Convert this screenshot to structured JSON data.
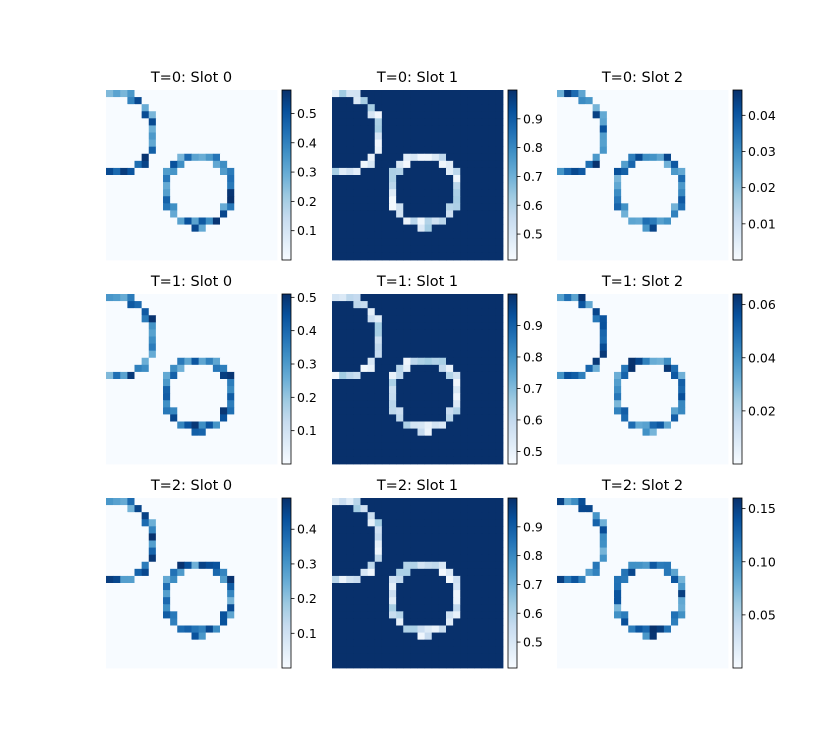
{
  "chart_data": {
    "type": "heatmap",
    "colormap": "Blues",
    "grid": "3x3",
    "panels": [
      {
        "title": "T=0: Slot 0",
        "mode": "ring",
        "dark_max": 0.58,
        "vmin": 0.0,
        "vmax": 0.58,
        "ticks": [
          0.1,
          0.2,
          0.3,
          0.4,
          0.5
        ]
      },
      {
        "title": "T=0: Slot 1",
        "mode": "inverse",
        "dark_max": 1.0,
        "vmin": 0.41,
        "vmax": 1.0,
        "ticks": [
          0.5,
          0.6,
          0.7,
          0.8,
          0.9
        ]
      },
      {
        "title": "T=0: Slot 2",
        "mode": "ring",
        "dark_max": 0.047,
        "vmin": 0.0,
        "vmax": 0.047,
        "ticks": [
          0.01,
          0.02,
          0.03,
          0.04
        ]
      },
      {
        "title": "T=1: Slot 0",
        "mode": "ring",
        "dark_max": 0.51,
        "vmin": 0.0,
        "vmax": 0.51,
        "ticks": [
          0.1,
          0.2,
          0.3,
          0.4,
          0.5
        ]
      },
      {
        "title": "T=1: Slot 1",
        "mode": "inverse",
        "dark_max": 1.0,
        "vmin": 0.46,
        "vmax": 1.0,
        "ticks": [
          0.5,
          0.6,
          0.7,
          0.8,
          0.9
        ]
      },
      {
        "title": "T=1: Slot 2",
        "mode": "ring",
        "dark_max": 0.064,
        "vmin": 0.0,
        "vmax": 0.064,
        "ticks": [
          0.02,
          0.04,
          0.06
        ]
      },
      {
        "title": "T=2: Slot 0",
        "mode": "ring",
        "dark_max": 0.49,
        "vmin": 0.0,
        "vmax": 0.49,
        "ticks": [
          0.1,
          0.2,
          0.3,
          0.4
        ]
      },
      {
        "title": "T=2: Slot 1",
        "mode": "inverse",
        "dark_max": 1.0,
        "vmin": 0.41,
        "vmax": 1.0,
        "ticks": [
          0.5,
          0.6,
          0.7,
          0.8,
          0.9
        ]
      },
      {
        "title": "T=2: Slot 2",
        "mode": "ring",
        "dark_max": 0.16,
        "vmin": 0.0,
        "vmax": 0.16,
        "ticks": [
          0.05,
          0.1,
          0.15
        ]
      }
    ],
    "tick_labels": [
      [
        "0.1",
        "0.2",
        "0.3",
        "0.4",
        "0.5"
      ],
      [
        "0.5",
        "0.6",
        "0.7",
        "0.8",
        "0.9"
      ],
      [
        "0.01",
        "0.02",
        "0.03",
        "0.04"
      ],
      [
        "0.1",
        "0.2",
        "0.3",
        "0.4",
        "0.5"
      ],
      [
        "0.5",
        "0.6",
        "0.7",
        "0.8",
        "0.9"
      ],
      [
        "0.02",
        "0.04",
        "0.06"
      ],
      [
        "0.1",
        "0.2",
        "0.3",
        "0.4"
      ],
      [
        "0.5",
        "0.6",
        "0.7",
        "0.8",
        "0.9"
      ],
      [
        "0.05",
        "0.10",
        "0.15"
      ]
    ],
    "colors": {
      "low": "#f7fbff",
      "high": "#08306b"
    }
  }
}
